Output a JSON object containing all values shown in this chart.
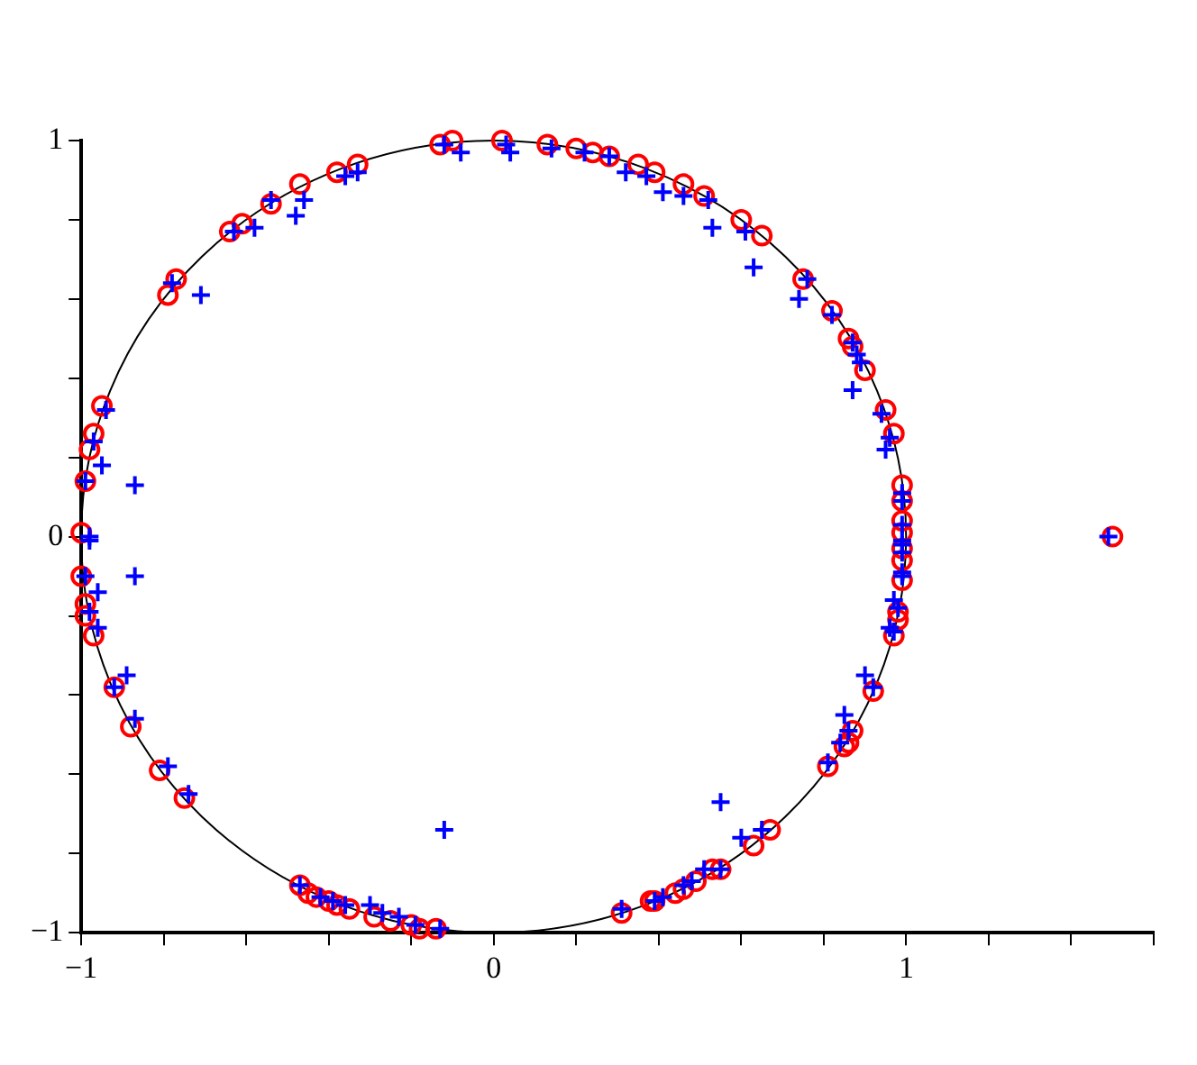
{
  "chart_data": {
    "type": "scatter",
    "xlim": [
      -1,
      1.6
    ],
    "ylim": [
      -1,
      1
    ],
    "xticks": [
      {
        "value": -1,
        "label": "−1"
      },
      {
        "value": -0.8,
        "label": null
      },
      {
        "value": -0.6,
        "label": null
      },
      {
        "value": -0.4,
        "label": null
      },
      {
        "value": -0.2,
        "label": null
      },
      0,
      {
        "value": 0.2,
        "label": null
      },
      {
        "value": 0.4,
        "label": null
      },
      {
        "value": 0.6,
        "label": null
      },
      {
        "value": 0.8,
        "label": null
      },
      1,
      {
        "value": 1.2,
        "label": null
      },
      {
        "value": 1.4,
        "label": null
      },
      {
        "value": 1.6,
        "label": null
      }
    ],
    "yticks": [
      {
        "value": -1,
        "label": "−1"
      },
      {
        "value": -0.8,
        "label": null
      },
      {
        "value": -0.6,
        "label": null
      },
      {
        "value": -0.4,
        "label": null
      },
      {
        "value": -0.2,
        "label": null
      },
      0,
      {
        "value": 0.2,
        "label": null
      },
      {
        "value": 0.4,
        "label": null
      },
      {
        "value": 0.6,
        "label": null
      },
      {
        "value": 0.8,
        "label": null
      },
      1
    ],
    "grid": false,
    "legend": false,
    "series": [
      {
        "color": "#ff0000",
        "marker": "circle",
        "x": [
          0.99,
          0.99,
          0.99,
          0.99,
          0.99,
          0.99,
          0.99,
          0.98,
          0.98,
          0.97,
          0.92,
          0.87,
          0.86,
          0.85,
          0.81,
          0.67,
          0.63,
          0.55,
          0.53,
          0.49,
          0.46,
          0.44,
          0.39,
          0.38,
          0.31,
          -1,
          -1,
          -0.99,
          -0.99,
          -0.97,
          -0.92,
          -0.88,
          -0.81,
          -0.75,
          -0.47,
          -0.45,
          -0.43,
          -0.4,
          -0.38,
          -0.35,
          -0.29,
          -0.25,
          -0.2,
          -0.18,
          -0.14,
          -0.99,
          -0.98,
          -0.97,
          -0.95,
          -0.79,
          -0.77,
          -0.64,
          -0.61,
          -0.54,
          -0.47,
          -0.38,
          -0.33,
          -0.13,
          -0.1,
          0.02,
          0.13,
          0.2,
          0.24,
          0.28,
          0.35,
          0.39,
          0.46,
          0.51,
          0.6,
          0.65,
          0.75,
          0.82,
          0.86,
          0.87,
          0.9,
          0.95,
          0.97,
          1.5
        ],
        "values": [
          0.13,
          0.09,
          0.04,
          0.01,
          -0.03,
          -0.06,
          -0.11,
          -0.19,
          -0.21,
          -0.25,
          -0.39,
          -0.49,
          -0.52,
          -0.53,
          -0.58,
          -0.74,
          -0.78,
          -0.84,
          -0.84,
          -0.87,
          -0.89,
          -0.9,
          -0.92,
          -0.92,
          -0.95,
          0.01,
          -0.1,
          -0.17,
          -0.2,
          -0.25,
          -0.38,
          -0.48,
          -0.59,
          -0.66,
          -0.88,
          -0.9,
          -0.91,
          -0.92,
          -0.93,
          -0.94,
          -0.96,
          -0.97,
          -0.98,
          -0.99,
          -0.99,
          0.14,
          0.22,
          0.26,
          0.33,
          0.61,
          0.65,
          0.77,
          0.79,
          0.84,
          0.89,
          0.92,
          0.94,
          0.99,
          1,
          1,
          0.99,
          0.98,
          0.97,
          0.96,
          0.94,
          0.92,
          0.89,
          0.86,
          0.8,
          0.76,
          0.65,
          0.57,
          0.5,
          0.48,
          0.42,
          0.32,
          0.26,
          0
        ]
      },
      {
        "color": "#0000ff",
        "marker": "cross",
        "x": [
          -0.98,
          -0.99,
          -0.95,
          -0.87,
          -0.97,
          -0.94,
          -0.78,
          -0.71,
          -0.63,
          -0.58,
          -0.54,
          -0.46,
          -0.48,
          -0.36,
          -0.33,
          -0.12,
          -0.08,
          0.03,
          0.04,
          0.14,
          0.22,
          0.28,
          0.32,
          0.37,
          0.41,
          0.46,
          0.52,
          0.53,
          0.61,
          0.63,
          0.76,
          0.74,
          0.82,
          0.87,
          0.88,
          0.89,
          0.87,
          0.94,
          0.95,
          0.96,
          0.99,
          0.99,
          0.99,
          0.99,
          0.99,
          0.99,
          0.99,
          0.99,
          0.97,
          0.98,
          0.96,
          0.97,
          0.9,
          0.92,
          0.85,
          0.86,
          0.84,
          0.81,
          0.55,
          0.65,
          0.6,
          0.55,
          0.51,
          0.48,
          0.46,
          0.41,
          0.39,
          0.31,
          -0.98,
          -0.99,
          -0.87,
          -0.96,
          -0.98,
          -0.96,
          -0.89,
          -0.92,
          -0.87,
          -0.79,
          -0.74,
          -0.12,
          -0.47,
          -0.42,
          -0.39,
          -0.36,
          -0.3,
          -0.27,
          -0.23,
          -0.19,
          -0.13,
          1.49
        ],
        "values": [
          0,
          0.14,
          0.18,
          0.13,
          0.24,
          0.32,
          0.64,
          0.61,
          0.77,
          0.78,
          0.85,
          0.85,
          0.81,
          0.91,
          0.92,
          0.99,
          0.97,
          0.99,
          0.97,
          0.98,
          0.97,
          0.96,
          0.92,
          0.91,
          0.87,
          0.86,
          0.85,
          0.78,
          0.77,
          0.68,
          0.65,
          0.6,
          0.56,
          0.49,
          0.46,
          0.44,
          0.37,
          0.31,
          0.22,
          0.25,
          0.11,
          0.09,
          0.03,
          -0.01,
          -0.02,
          -0.04,
          -0.09,
          -0.1,
          -0.16,
          -0.18,
          -0.23,
          -0.24,
          -0.35,
          -0.38,
          -0.45,
          -0.49,
          -0.52,
          -0.57,
          -0.67,
          -0.74,
          -0.76,
          -0.84,
          -0.84,
          -0.87,
          -0.88,
          -0.91,
          -0.92,
          -0.94,
          -0.01,
          -0.1,
          -0.1,
          -0.14,
          -0.19,
          -0.23,
          -0.35,
          -0.38,
          -0.46,
          -0.58,
          -0.65,
          -0.74,
          -0.88,
          -0.91,
          -0.92,
          -0.93,
          -0.93,
          -0.95,
          -0.96,
          -0.98,
          -0.99,
          0
        ]
      }
    ]
  }
}
